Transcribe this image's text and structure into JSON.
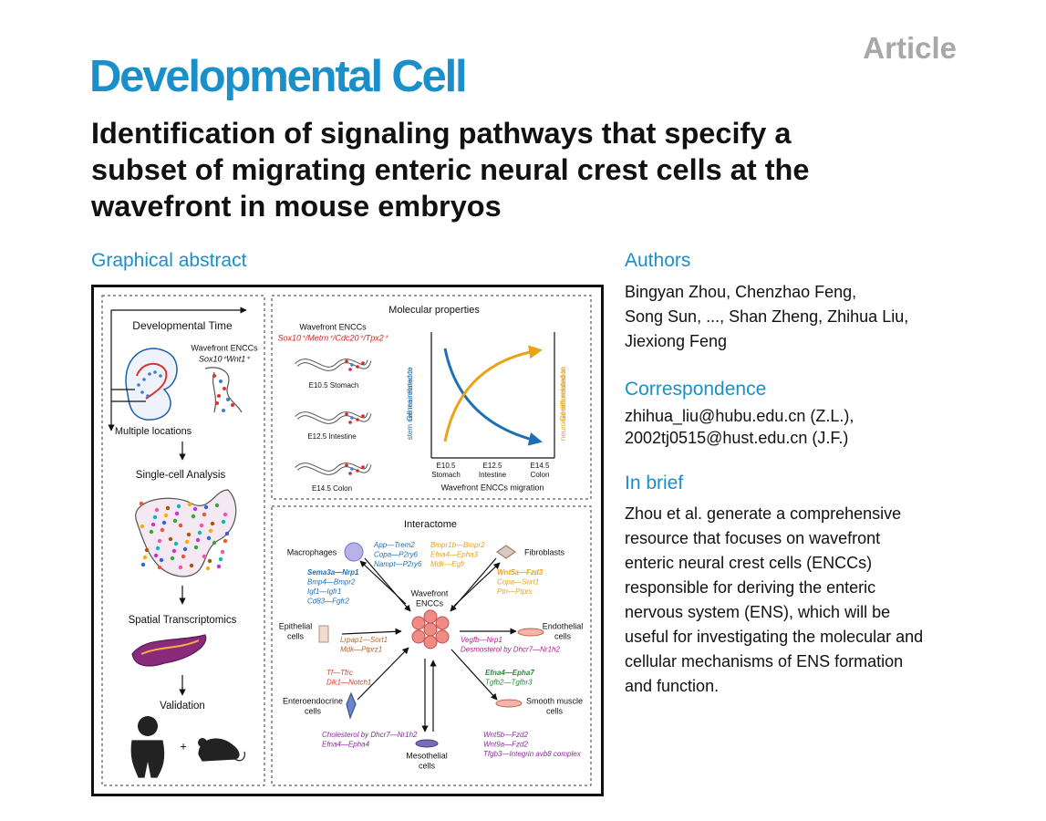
{
  "header": {
    "label": "Article",
    "journal": "Developmental Cell",
    "title_lines": [
      "Identification of signaling pathways that specify a",
      "subset of migrating enteric neural crest cells at the",
      "wavefront in mouse embryos"
    ]
  },
  "graphical_abstract": {
    "heading": "Graphical abstract",
    "left_panel": {
      "developmental_time": "Developmental Time",
      "wavefront_label": "Wavefront ENCCs",
      "wavefront_marker": "Sox10⁺Wnt1⁺",
      "multiple_locations": "Multiple locations",
      "steps": [
        "Single-cell Analysis",
        "Spatial Transcriptomics",
        "Validation"
      ],
      "plus": "+"
    },
    "molecular_properties": {
      "title": "Molecular properties",
      "wavefront_label": "Wavefront ENCCs",
      "markers": "Sox10⁺/Metrn⁺/Cdc20⁺/Tpx2⁺",
      "stages": [
        "E10.5  Stomach",
        "E12.5  Intestine",
        "E14.5  Colon"
      ],
      "y_left": [
        "Genes related to",
        "stem cell maintenance"
      ],
      "y_right": [
        "Genes related to",
        "neuronal differentiation"
      ],
      "x_stages": [
        "E10.5",
        "E12.5",
        "E14.5"
      ],
      "x_organs": [
        "Stomach",
        "Intestine",
        "Colon"
      ],
      "x_label": "Wavefront ENCCs migration"
    },
    "interactome": {
      "title": "Interactome",
      "center": [
        "Wavefront",
        "ENCCs"
      ],
      "macrophages": {
        "label": [
          "Macrophages"
        ],
        "pairs_top": [
          "App—Trem2",
          "Copa—P2ry6",
          "Nampt—P2ry6"
        ],
        "pairs_side": [
          "Sema3a—Nrp1",
          "Bmp4—Bmpr2",
          "Igf1—Igfr1",
          "Cd83—Fgfr2"
        ]
      },
      "fibroblasts": {
        "label": [
          "Fibroblasts"
        ],
        "pairs_top": [
          "Bmpr1b—Bmpr2",
          "Efna4—Epha3",
          "Mdk—Egfr"
        ],
        "pairs_side": [
          "Wnt5a—Fzd3",
          "Copa—Sort1",
          "Ptn—Ptprs"
        ]
      },
      "epithelial": {
        "label": [
          "Epithelial",
          "cells"
        ],
        "pairs": [
          "Lrpap1—Sort1",
          "Mdk—Ptprz1"
        ]
      },
      "endothelial": {
        "label": [
          "Endothelial",
          "cells"
        ],
        "pairs": [
          "Vegfb—Nrp1",
          "Desmosterol by Dhcr7—Nr1h2"
        ]
      },
      "enteroendocrine": {
        "label": [
          "Enteroendocrine",
          "cells"
        ],
        "pairs": [
          "Tf—Tfrc",
          "Dlk1—Notch1"
        ]
      },
      "smooth_muscle": {
        "label": [
          "Smooth muscle",
          "cells"
        ],
        "pairs": [
          "Efna4—Epha7",
          "Tgfb2—Tgfbr3"
        ]
      },
      "mesothelial": {
        "label": [
          "Mesothelial",
          "cells"
        ],
        "pairs_left": [
          "Cholesterol by Dhcr7—Nr1h2",
          "Efna4—Epha4"
        ],
        "pairs_right": [
          "Wnt5b—Fzd2",
          "Wnt9a—Fzd2",
          "Tfgb3—Integrin avb8 complex"
        ]
      }
    }
  },
  "sidebar": {
    "authors_heading": "Authors",
    "authors_lines": [
      "Bingyan Zhou, Chenzhao Feng,",
      "Song Sun, ..., Shan Zheng, Zhihua Liu,",
      "Jiexiong Feng"
    ],
    "correspondence_heading": "Correspondence",
    "correspondence_lines": [
      "zhihua_liu@hubu.edu.cn (Z.L.),",
      "2002tj0515@hust.edu.cn (J.F.)"
    ],
    "brief_heading": "In brief",
    "brief_lines": [
      "Zhou et al. generate a comprehensive",
      "resource that focuses on wavefront",
      "enteric neural crest cells (ENCCs)",
      "responsible for deriving the enteric",
      "nervous system (ENS), which will be",
      "useful for investigating the molecular and",
      "cellular mechanisms of ENS formation",
      "and function."
    ]
  }
}
